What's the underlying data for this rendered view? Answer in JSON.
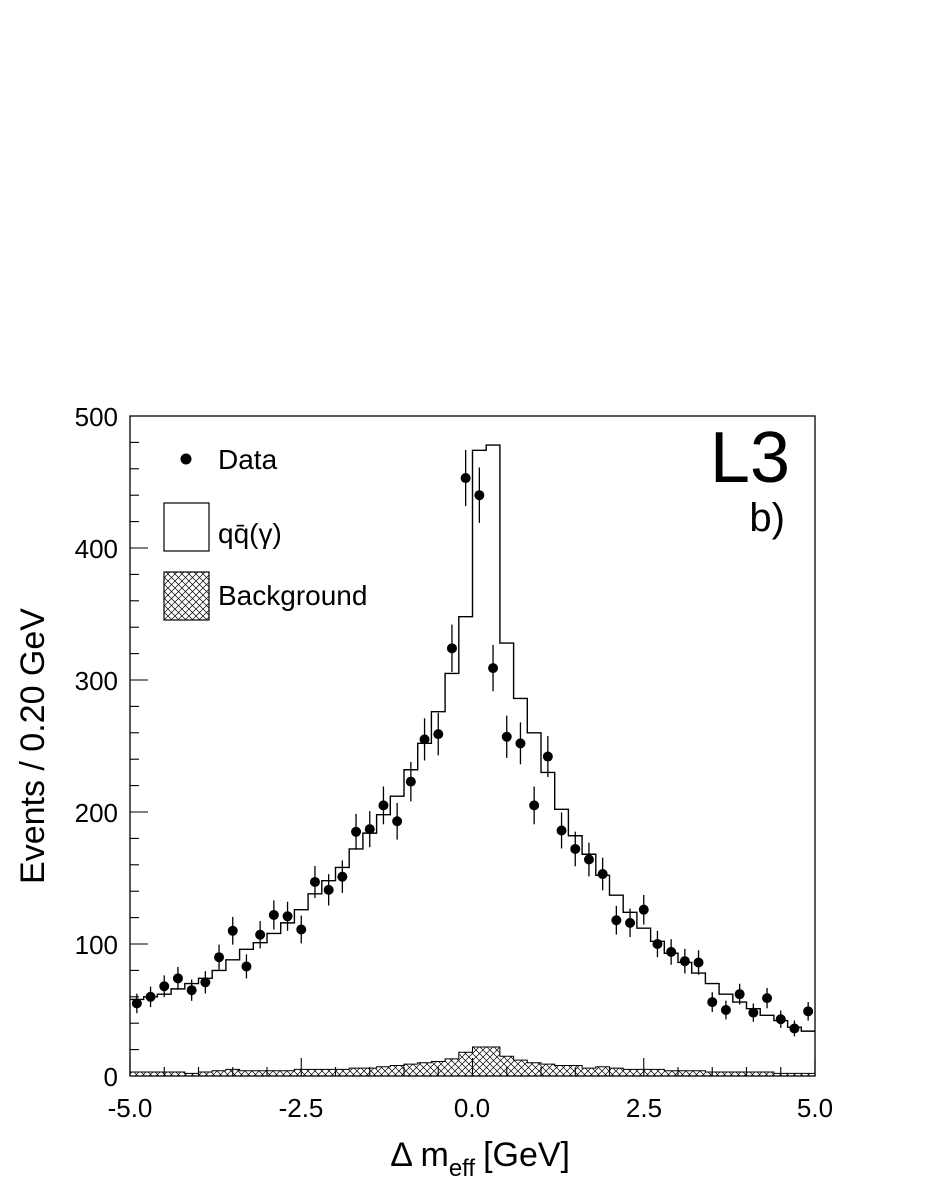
{
  "chart_data": {
    "type": "histogram",
    "experiment_label": "L3",
    "panel_label": "b)",
    "xlabel": {
      "main": "Δ m",
      "sub": "eff",
      "unit": "[GeV]"
    },
    "ylabel": "Events / 0.20 GeV",
    "xlim": [
      -5.0,
      5.0
    ],
    "ylim": [
      0,
      500
    ],
    "xticks": [
      "-5.0",
      "-2.5",
      "0.0",
      "2.5",
      "5.0"
    ],
    "yticks": [
      "0",
      "100",
      "200",
      "300",
      "400",
      "500"
    ],
    "legend": {
      "placement": "top-left",
      "entries": [
        {
          "label": "Data",
          "symbol": "dot"
        },
        {
          "label": "qq̄(γ)",
          "symbol": "open-box"
        },
        {
          "label": "Background",
          "symbol": "hatched-box"
        }
      ]
    },
    "bin_edges_start": -5.0,
    "bin_width": 0.2,
    "series": [
      {
        "name": "Data",
        "kind": "points-with-errors",
        "x": [
          -4.9,
          -4.7,
          -4.5,
          -4.3,
          -4.1,
          -3.9,
          -3.7,
          -3.5,
          -3.3,
          -3.1,
          -2.9,
          -2.7,
          -2.5,
          -2.3,
          -2.1,
          -1.9,
          -1.7,
          -1.5,
          -1.3,
          -1.1,
          -0.9,
          -0.7,
          -0.5,
          -0.3,
          -0.1,
          0.1,
          0.3,
          0.5,
          0.7,
          0.9,
          1.1,
          1.3,
          1.5,
          1.7,
          1.9,
          2.1,
          2.3,
          2.5,
          2.7,
          2.9,
          3.1,
          3.3,
          3.5,
          3.7,
          3.9,
          4.1,
          4.3,
          4.5,
          4.7,
          4.9
        ],
        "values": [
          55,
          60,
          68,
          74,
          65,
          71,
          90,
          110,
          83,
          107,
          122,
          121,
          111,
          147,
          141,
          151,
          185,
          187,
          205,
          193,
          223,
          255,
          259,
          324,
          453,
          440,
          309,
          257,
          252,
          205,
          242,
          186,
          172,
          164,
          153,
          118,
          116,
          126,
          100,
          94,
          87,
          86,
          56,
          50,
          62,
          48,
          59,
          43,
          36,
          49
        ]
      },
      {
        "name": "qq̄(γ)",
        "kind": "step-histogram",
        "values": [
          58,
          60,
          62,
          66,
          70,
          74,
          80,
          88,
          96,
          101,
          108,
          116,
          126,
          138,
          148,
          158,
          172,
          184,
          198,
          212,
          232,
          252,
          276,
          305,
          348,
          474,
          478,
          328,
          286,
          260,
          230,
          202,
          182,
          168,
          152,
          137,
          124,
          112,
          102,
          93,
          86,
          78,
          70,
          62,
          56,
          51,
          46,
          42,
          37,
          34
        ]
      },
      {
        "name": "Background",
        "kind": "hatched-histogram",
        "values": [
          3,
          3,
          3,
          3,
          2,
          3,
          4,
          5,
          4,
          4,
          4,
          4,
          5,
          5,
          5,
          5,
          6,
          6,
          7,
          8,
          9,
          10,
          11,
          13,
          18,
          22,
          22,
          15,
          12,
          10,
          9,
          8,
          8,
          6,
          7,
          6,
          5,
          5,
          5,
          4,
          4,
          4,
          3,
          3,
          3,
          3,
          3,
          2,
          2,
          2
        ]
      }
    ]
  }
}
